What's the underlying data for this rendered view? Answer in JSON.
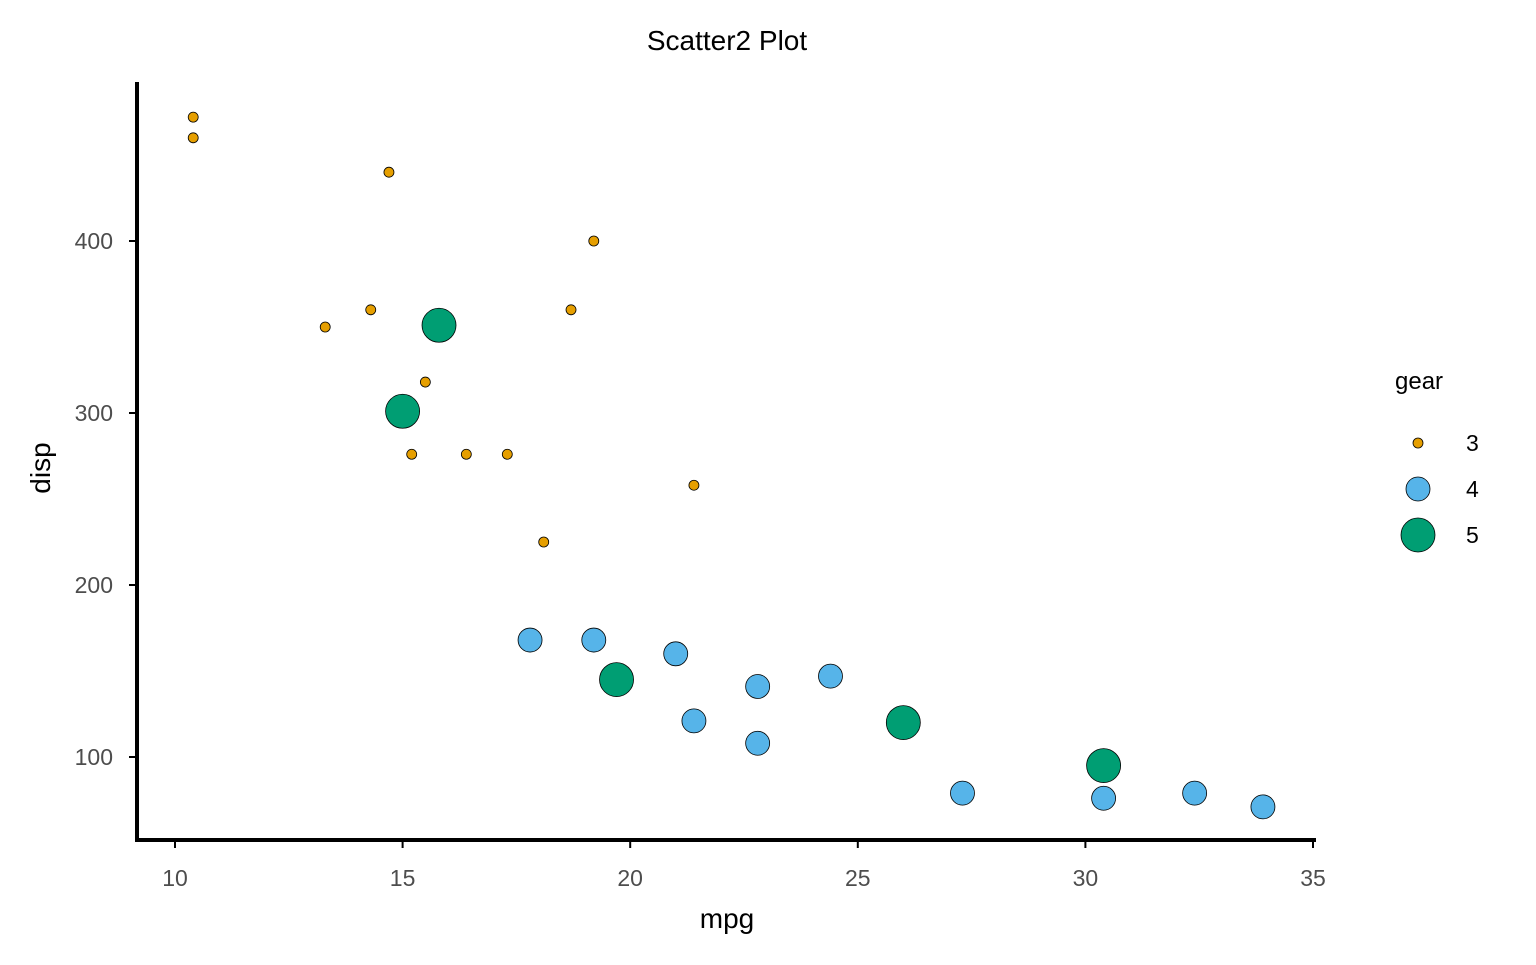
{
  "chart_data": {
    "type": "scatter",
    "title": "Scatter2 Plot",
    "xlabel": "mpg",
    "ylabel": "disp",
    "xlim": [
      9.2,
      35
    ],
    "ylim": [
      50,
      490
    ],
    "xticks": [
      10,
      15,
      20,
      25,
      30,
      35
    ],
    "yticks": [
      100,
      200,
      300,
      400
    ],
    "grid": false,
    "legend": {
      "title": "gear",
      "placement": "right",
      "entries": [
        "3",
        "4",
        "5"
      ]
    },
    "series": [
      {
        "name": "3",
        "color": "#E69F00",
        "size_rank": 1,
        "points": [
          [
            10.4,
            472
          ],
          [
            10.4,
            460
          ],
          [
            14.7,
            440
          ],
          [
            19.2,
            400
          ],
          [
            13.3,
            350
          ],
          [
            14.3,
            360
          ],
          [
            18.7,
            360
          ],
          [
            15.5,
            318
          ],
          [
            15.2,
            276
          ],
          [
            16.4,
            276
          ],
          [
            17.3,
            276
          ],
          [
            21.4,
            258
          ],
          [
            18.1,
            225
          ]
        ]
      },
      {
        "name": "4",
        "color": "#56B4E9",
        "size_rank": 2,
        "points": [
          [
            17.8,
            168
          ],
          [
            19.2,
            168
          ],
          [
            21.0,
            160
          ],
          [
            22.8,
            141
          ],
          [
            24.4,
            147
          ],
          [
            21.4,
            121
          ],
          [
            22.8,
            108
          ],
          [
            27.3,
            79
          ],
          [
            30.4,
            76
          ],
          [
            32.4,
            79
          ],
          [
            33.9,
            71
          ]
        ]
      },
      {
        "name": "5",
        "color": "#009E73",
        "size_rank": 3,
        "points": [
          [
            15.8,
            351
          ],
          [
            15.0,
            301
          ],
          [
            19.7,
            145
          ],
          [
            26.0,
            120
          ],
          [
            30.4,
            95
          ]
        ]
      }
    ]
  }
}
